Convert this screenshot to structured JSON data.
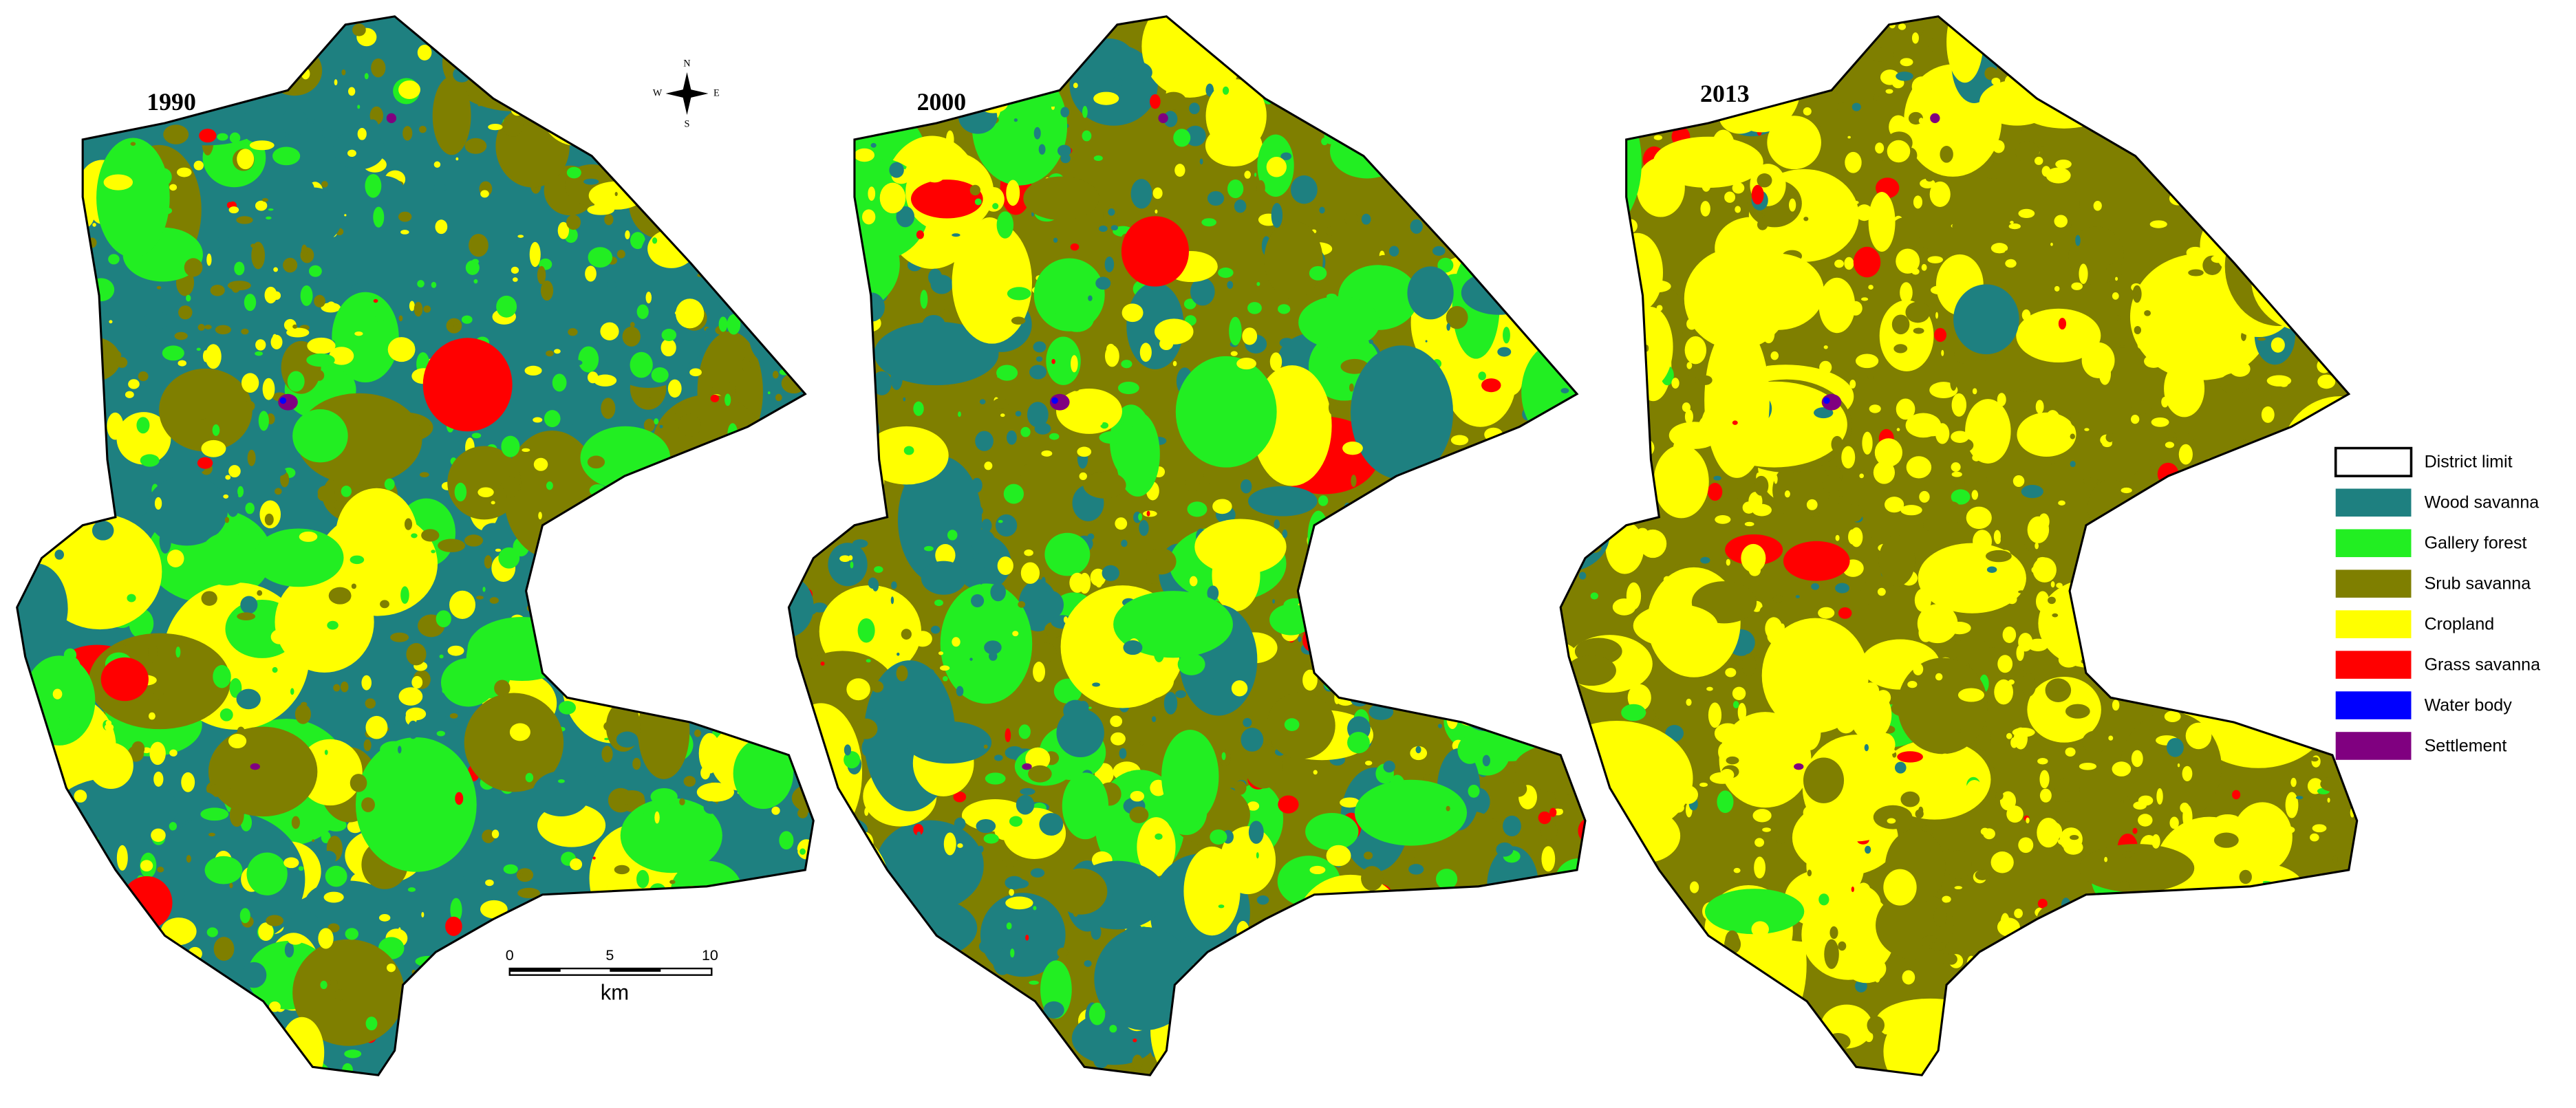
{
  "maps": [
    {
      "title": "1990"
    },
    {
      "title": "2000"
    },
    {
      "title": "2013"
    }
  ],
  "legend": [
    {
      "label": "District limit",
      "color": "#ffffff"
    },
    {
      "label": "Wood savanna",
      "color": "#1e8080"
    },
    {
      "label": "Gallery forest",
      "color": "#22ee22"
    },
    {
      "label": "Srub savanna",
      "color": "#7f7f00"
    },
    {
      "label": "Cropland",
      "color": "#ffff00"
    },
    {
      "label": "Grass savanna",
      "color": "#ff0000"
    },
    {
      "label": "Water body",
      "color": "#0000ff"
    },
    {
      "label": "Settlement",
      "color": "#800080"
    }
  ],
  "compass": {
    "n": "N",
    "s": "S",
    "e": "E",
    "w": "W"
  },
  "scale_bar": {
    "labels": [
      "0",
      "5",
      "10"
    ],
    "unit": "km"
  }
}
